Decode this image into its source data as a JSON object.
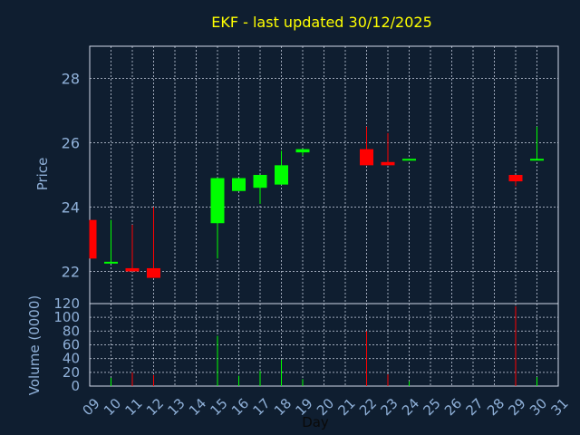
{
  "chart_data": {
    "type": "candlestick",
    "title": "EKF - last updated 30/12/2025",
    "xlabel": "Day",
    "price_ylabel": "Price",
    "volume_ylabel": "Volume (0000)",
    "x_ticks": [
      "09",
      "10",
      "11",
      "12",
      "13",
      "14",
      "15",
      "16",
      "17",
      "18",
      "19",
      "20",
      "21",
      "22",
      "23",
      "24",
      "25",
      "26",
      "27",
      "28",
      "29",
      "30",
      "31"
    ],
    "price_ylim": [
      21,
      29
    ],
    "price_ticks": [
      22,
      24,
      26,
      28
    ],
    "volume_ylim": [
      0,
      120
    ],
    "volume_ticks": [
      0,
      20,
      40,
      60,
      80,
      100,
      120
    ],
    "grid": true,
    "up_color": "#00ff00",
    "down_color": "#ff0000",
    "candles": [
      {
        "day": 9,
        "open": 23.6,
        "high": 23.6,
        "low": 22.4,
        "close": 22.4
      },
      {
        "day": 10,
        "open": 22.3,
        "high": 23.6,
        "low": 22.3,
        "close": 22.3
      },
      {
        "day": 11,
        "open": 22.1,
        "high": 23.45,
        "low": 22.0,
        "close": 22.0
      },
      {
        "day": 12,
        "open": 22.1,
        "high": 24.0,
        "low": 21.8,
        "close": 21.8
      },
      {
        "day": 15,
        "open": 23.5,
        "high": 24.9,
        "low": 22.4,
        "close": 24.9
      },
      {
        "day": 16,
        "open": 24.5,
        "high": 24.9,
        "low": 24.5,
        "close": 24.9
      },
      {
        "day": 17,
        "open": 24.6,
        "high": 25.0,
        "low": 24.1,
        "close": 25.0
      },
      {
        "day": 18,
        "open": 24.7,
        "high": 25.75,
        "low": 24.7,
        "close": 25.3
      },
      {
        "day": 19,
        "open": 25.7,
        "high": 25.8,
        "low": 25.6,
        "close": 25.8
      },
      {
        "day": 22,
        "open": 25.8,
        "high": 26.5,
        "low": 25.3,
        "close": 25.3
      },
      {
        "day": 23,
        "open": 25.4,
        "high": 26.3,
        "low": 25.3,
        "close": 25.3
      },
      {
        "day": 24,
        "open": 25.5,
        "high": 25.5,
        "low": 25.45,
        "close": 25.5
      },
      {
        "day": 29,
        "open": 25.0,
        "high": 25.0,
        "low": 24.65,
        "close": 24.8
      },
      {
        "day": 30,
        "open": 25.5,
        "high": 26.5,
        "low": 25.5,
        "close": 25.5
      }
    ],
    "volumes": [
      {
        "day": 10,
        "value": 12,
        "dir": "up"
      },
      {
        "day": 11,
        "value": 20,
        "dir": "down"
      },
      {
        "day": 12,
        "value": 16,
        "dir": "down"
      },
      {
        "day": 15,
        "value": 73,
        "dir": "up"
      },
      {
        "day": 16,
        "value": 15,
        "dir": "up"
      },
      {
        "day": 17,
        "value": 22,
        "dir": "up"
      },
      {
        "day": 18,
        "value": 38,
        "dir": "up"
      },
      {
        "day": 19,
        "value": 10,
        "dir": "up"
      },
      {
        "day": 22,
        "value": 80,
        "dir": "down"
      },
      {
        "day": 23,
        "value": 17,
        "dir": "down"
      },
      {
        "day": 24,
        "value": 7,
        "dir": "up"
      },
      {
        "day": 29,
        "value": 116,
        "dir": "down"
      },
      {
        "day": 30,
        "value": 13,
        "dir": "up"
      }
    ]
  }
}
